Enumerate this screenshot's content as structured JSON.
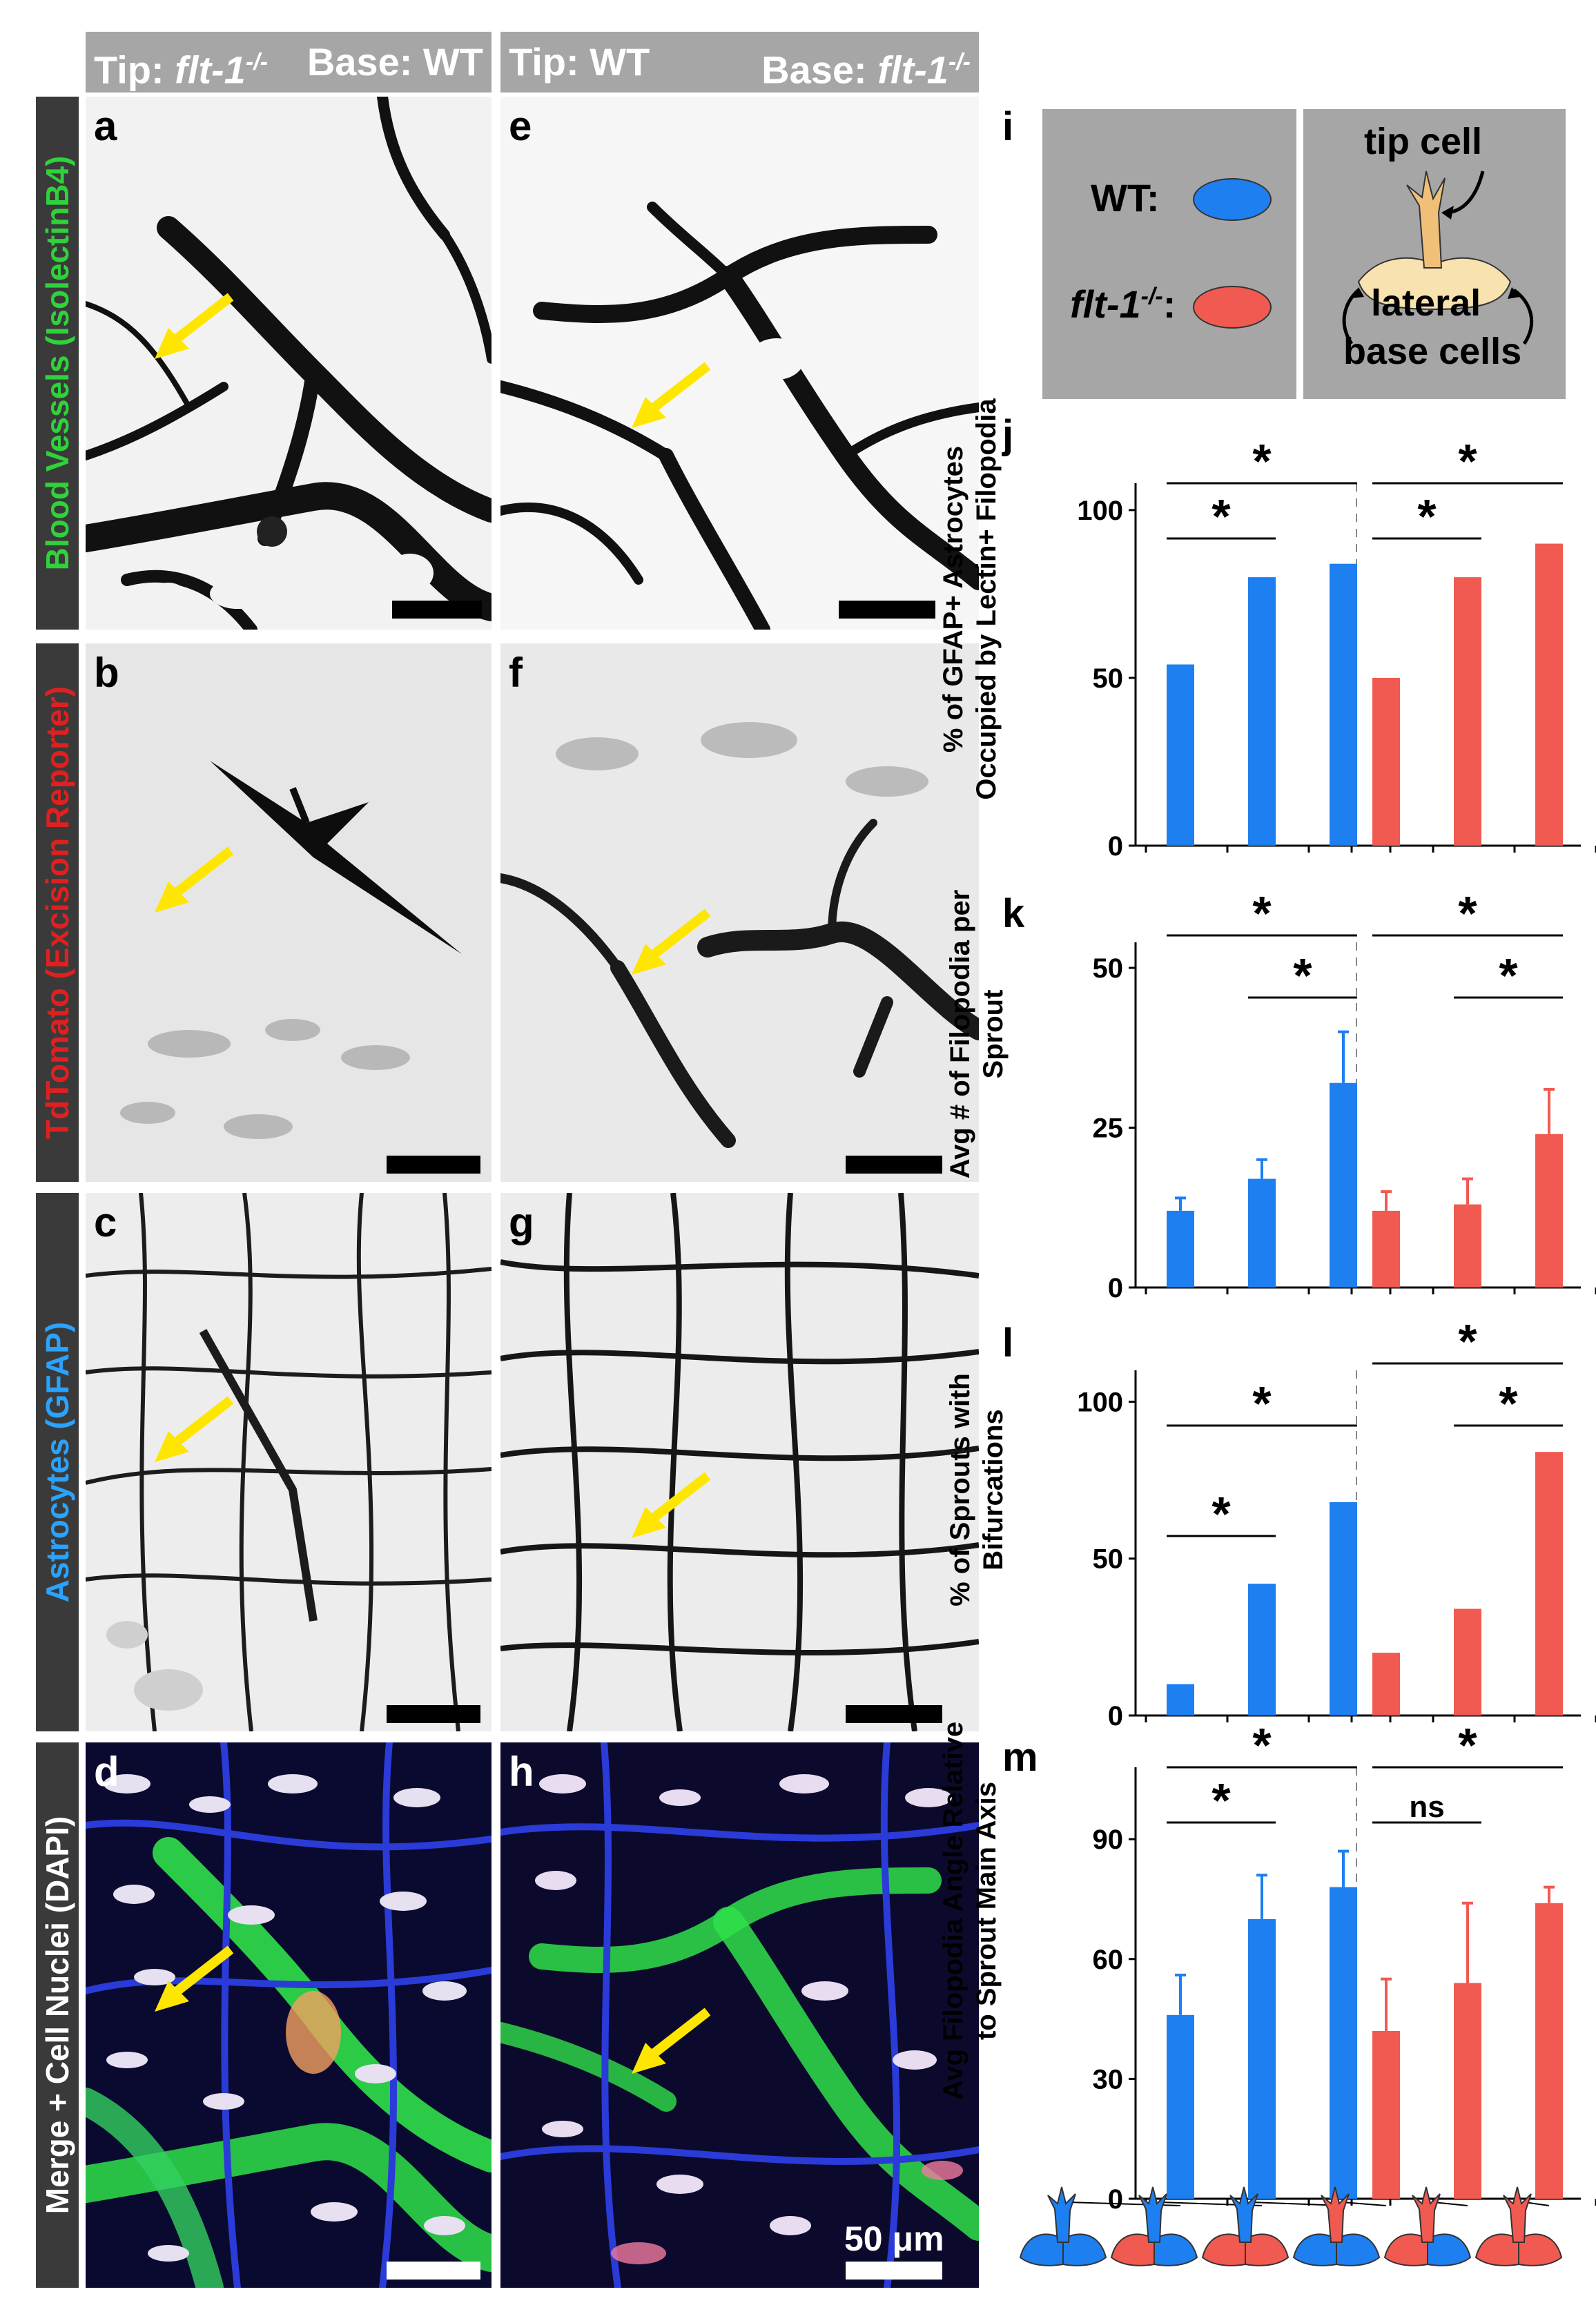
{
  "headers": {
    "left_tip": "Tip: ",
    "left_tip_geno": "flt-1",
    "left_tip_sup": "-/-",
    "left_base": "Base: WT",
    "right_tip": "Tip: WT",
    "right_base": "Base: ",
    "right_base_geno": "flt-1",
    "right_base_sup": "-/-"
  },
  "row_labels": {
    "r1": "Blood Vessels (IsolectinB4)",
    "r2": "TdTomato (Excision Reporter)",
    "r3": "Astrocytes (GFAP)",
    "r4": "Merge + Cell Nuclei (DAPI)"
  },
  "row_label_colors": {
    "r1": "#2fd23a",
    "r2": "#e02020",
    "r3": "#2aa3ff",
    "r4": "#ffffff"
  },
  "panels": {
    "a": "a",
    "b": "b",
    "c": "c",
    "d": "d",
    "e": "e",
    "f": "f",
    "g": "g",
    "h": "h"
  },
  "scale_bar_label": "50 μm",
  "legend": {
    "letter": "i",
    "wt": "WT:",
    "flt": "flt-1",
    "flt_sup": "-/-",
    "flt_colon": ":",
    "tip_cell": "tip cell",
    "lateral": "lateral",
    "base_cells": "base cells",
    "wt_color": "#1e7ff0",
    "flt_color": "#f05a50"
  },
  "chart_data": [
    {
      "panel": "j",
      "type": "bar",
      "ylabel": "% of GFAP+ Astrocytes Occupied by Lectin+ Filopodia",
      "ylim": [
        0,
        108
      ],
      "yticks": [
        "0",
        "50",
        "100"
      ],
      "series": [
        {
          "color": "#1e7ff0",
          "values": [
            54,
            80,
            84
          ]
        },
        {
          "color": "#f05a50",
          "values": [
            50,
            80,
            90
          ]
        }
      ],
      "significance": [
        {
          "group": 0,
          "from": 0,
          "to": 1,
          "label": "*"
        },
        {
          "group": 0,
          "from": 0,
          "to": 2,
          "label": "*"
        },
        {
          "group": 1,
          "from": 0,
          "to": 1,
          "label": "*"
        },
        {
          "group": 1,
          "from": 0,
          "to": 2,
          "label": "*"
        }
      ]
    },
    {
      "panel": "k",
      "type": "bar",
      "ylabel": "Avg # of Filopodia per Sprout",
      "ylim": [
        0,
        54
      ],
      "yticks": [
        "0",
        "25",
        "50"
      ],
      "series": [
        {
          "color": "#1e7ff0",
          "values": [
            12,
            17,
            32
          ],
          "errors": [
            2,
            3,
            8
          ]
        },
        {
          "color": "#f05a50",
          "values": [
            12,
            13,
            24
          ],
          "errors": [
            3,
            4,
            7
          ]
        }
      ],
      "significance": [
        {
          "group": 0,
          "from": 0,
          "to": 2,
          "label": "*"
        },
        {
          "group": 0,
          "from": 1,
          "to": 2,
          "label": "*"
        },
        {
          "group": 1,
          "from": 0,
          "to": 2,
          "label": "*"
        },
        {
          "group": 1,
          "from": 1,
          "to": 2,
          "label": "*"
        }
      ]
    },
    {
      "panel": "l",
      "type": "bar",
      "ylabel": "% of Sprouts with Bifurcations",
      "ylim": [
        0,
        110
      ],
      "yticks": [
        "0",
        "50",
        "100"
      ],
      "series": [
        {
          "color": "#1e7ff0",
          "values": [
            10,
            42,
            68
          ]
        },
        {
          "color": "#f05a50",
          "values": [
            20,
            34,
            84
          ]
        }
      ],
      "significance": [
        {
          "group": 0,
          "from": 0,
          "to": 1,
          "label": "*"
        },
        {
          "group": 0,
          "from": 0,
          "to": 2,
          "label": "*"
        },
        {
          "group": 1,
          "from": 0,
          "to": 2,
          "label": "*"
        },
        {
          "group": 1,
          "from": 1,
          "to": 2,
          "label": "*"
        }
      ]
    },
    {
      "panel": "m",
      "type": "bar",
      "ylabel": "Avg Filopodia Angle Relative to Sprout Main Axis",
      "ylim": [
        0,
        108
      ],
      "yticks": [
        "0",
        "30",
        "60",
        "90"
      ],
      "series": [
        {
          "color": "#1e7ff0",
          "values": [
            46,
            70,
            78
          ],
          "errors": [
            10,
            11,
            9
          ]
        },
        {
          "color": "#f05a50",
          "values": [
            42,
            54,
            74
          ],
          "errors": [
            13,
            20,
            4
          ]
        }
      ],
      "significance": [
        {
          "group": 0,
          "from": 0,
          "to": 1,
          "label": "*"
        },
        {
          "group": 0,
          "from": 0,
          "to": 2,
          "label": "*"
        },
        {
          "group": 1,
          "from": 0,
          "to": 1,
          "label": "ns"
        },
        {
          "group": 1,
          "from": 0,
          "to": 2,
          "label": "*"
        }
      ]
    }
  ],
  "sprout_icons": [
    {
      "tip": "#1e7ff0",
      "left": "#1e7ff0",
      "right": "#1e7ff0"
    },
    {
      "tip": "#1e7ff0",
      "left": "#f05a50",
      "right": "#1e7ff0"
    },
    {
      "tip": "#1e7ff0",
      "left": "#f05a50",
      "right": "#f05a50"
    },
    {
      "tip": "#f05a50",
      "left": "#1e7ff0",
      "right": "#1e7ff0"
    },
    {
      "tip": "#f05a50",
      "left": "#f05a50",
      "right": "#1e7ff0"
    },
    {
      "tip": "#f05a50",
      "left": "#f05a50",
      "right": "#f05a50"
    }
  ]
}
